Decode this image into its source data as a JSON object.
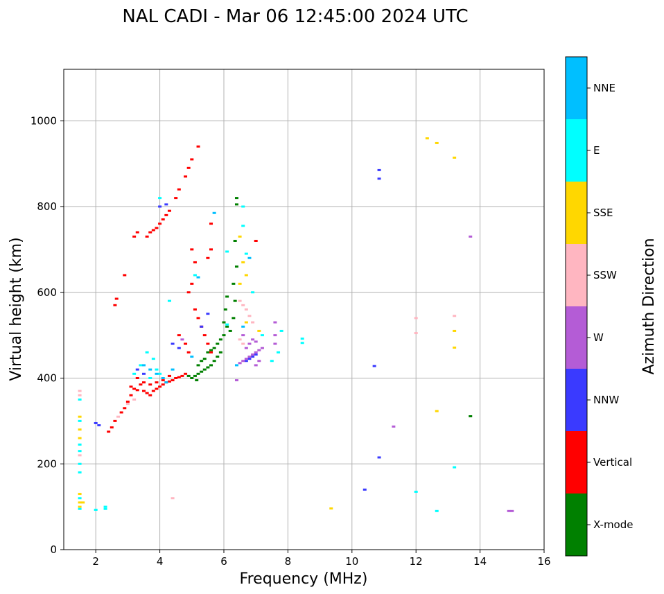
{
  "chart_data": {
    "type": "scatter",
    "title": "NAL CADI - Mar 06 12:45:00 2024 UTC",
    "xlabel": "Frequency (MHz)",
    "ylabel": "Virtual height (km)",
    "xlim": [
      1,
      16
    ],
    "ylim": [
      0,
      1120
    ],
    "xticks": [
      2,
      4,
      6,
      8,
      10,
      12,
      14,
      16
    ],
    "yticks": [
      0,
      200,
      400,
      600,
      800,
      1000
    ],
    "grid": true,
    "colorbar": {
      "label": "Azimuth Direction",
      "categories": [
        {
          "name": "X-mode",
          "color": "#008000"
        },
        {
          "name": "Vertical",
          "color": "#ff0000"
        },
        {
          "name": "NNW",
          "color": "#3a3aff"
        },
        {
          "name": "W",
          "color": "#b45cd6"
        },
        {
          "name": "SSW",
          "color": "#ffb6c1"
        },
        {
          "name": "SSE",
          "color": "#ffd700"
        },
        {
          "name": "E",
          "color": "#00ffff"
        },
        {
          "name": "NNE",
          "color": "#00bfff"
        }
      ]
    },
    "series": [
      {
        "name": "X-mode",
        "points": [
          [
            5.0,
            400
          ],
          [
            5.1,
            405
          ],
          [
            5.2,
            410
          ],
          [
            5.3,
            415
          ],
          [
            5.4,
            420
          ],
          [
            5.5,
            425
          ],
          [
            5.6,
            430
          ],
          [
            5.7,
            440
          ],
          [
            5.8,
            450
          ],
          [
            5.9,
            460
          ],
          [
            5.2,
            430
          ],
          [
            5.3,
            440
          ],
          [
            5.4,
            445
          ],
          [
            5.5,
            460
          ],
          [
            5.6,
            465
          ],
          [
            5.7,
            470
          ],
          [
            5.8,
            480
          ],
          [
            5.9,
            490
          ],
          [
            6.0,
            500
          ],
          [
            6.0,
            530
          ],
          [
            6.05,
            560
          ],
          [
            6.1,
            590
          ],
          [
            6.1,
            520
          ],
          [
            6.2,
            510
          ],
          [
            6.3,
            540
          ],
          [
            6.35,
            580
          ],
          [
            6.3,
            620
          ],
          [
            6.4,
            660
          ],
          [
            6.35,
            720
          ],
          [
            6.4,
            805
          ],
          [
            6.4,
            820
          ],
          [
            13.7,
            311
          ],
          [
            4.9,
            405
          ],
          [
            5.15,
            395
          ]
        ]
      },
      {
        "name": "Vertical",
        "points": [
          [
            2.4,
            275
          ],
          [
            2.5,
            285
          ],
          [
            2.6,
            300
          ],
          [
            2.6,
            570
          ],
          [
            2.65,
            585
          ],
          [
            2.8,
            320
          ],
          [
            2.9,
            330
          ],
          [
            2.9,
            640
          ],
          [
            3.0,
            345
          ],
          [
            3.1,
            360
          ],
          [
            3.1,
            380
          ],
          [
            3.2,
            375
          ],
          [
            3.3,
            372
          ],
          [
            3.4,
            385
          ],
          [
            3.5,
            370
          ],
          [
            3.6,
            365
          ],
          [
            3.7,
            360
          ],
          [
            3.8,
            370
          ],
          [
            3.9,
            375
          ],
          [
            4.0,
            380
          ],
          [
            4.1,
            385
          ],
          [
            4.2,
            390
          ],
          [
            4.3,
            392
          ],
          [
            4.4,
            395
          ],
          [
            4.5,
            400
          ],
          [
            4.6,
            402
          ],
          [
            4.7,
            405
          ],
          [
            4.8,
            410
          ],
          [
            3.3,
            400
          ],
          [
            3.5,
            390
          ],
          [
            3.7,
            385
          ],
          [
            3.9,
            390
          ],
          [
            4.1,
            395
          ],
          [
            4.3,
            405
          ],
          [
            3.2,
            730
          ],
          [
            3.3,
            740
          ],
          [
            3.6,
            730
          ],
          [
            3.7,
            740
          ],
          [
            3.8,
            745
          ],
          [
            3.9,
            750
          ],
          [
            4.0,
            760
          ],
          [
            4.1,
            770
          ],
          [
            4.2,
            780
          ],
          [
            4.3,
            790
          ],
          [
            4.5,
            820
          ],
          [
            4.6,
            840
          ],
          [
            4.8,
            870
          ],
          [
            4.9,
            890
          ],
          [
            5.0,
            910
          ],
          [
            5.2,
            940
          ],
          [
            4.9,
            600
          ],
          [
            5.0,
            620
          ],
          [
            5.1,
            560
          ],
          [
            5.2,
            540
          ],
          [
            5.3,
            520
          ],
          [
            5.4,
            500
          ],
          [
            5.5,
            480
          ],
          [
            5.6,
            460
          ],
          [
            5.0,
            700
          ],
          [
            5.1,
            670
          ],
          [
            5.6,
            760
          ],
          [
            5.6,
            700
          ],
          [
            5.5,
            680
          ],
          [
            4.6,
            500
          ],
          [
            4.8,
            480
          ],
          [
            4.9,
            460
          ],
          [
            7.0,
            720
          ]
        ]
      },
      {
        "name": "NNW",
        "points": [
          [
            2.0,
            295
          ],
          [
            2.1,
            290
          ],
          [
            3.3,
            420
          ],
          [
            3.5,
            410
          ],
          [
            4.0,
            800
          ],
          [
            4.2,
            805
          ],
          [
            4.4,
            480
          ],
          [
            4.6,
            470
          ],
          [
            5.5,
            550
          ],
          [
            5.3,
            520
          ],
          [
            10.7,
            428
          ],
          [
            10.85,
            865
          ],
          [
            10.85,
            885
          ],
          [
            10.85,
            215
          ],
          [
            10.4,
            140
          ],
          [
            6.7,
            440
          ],
          [
            6.8,
            445
          ],
          [
            6.9,
            450
          ],
          [
            7.0,
            455
          ]
        ]
      },
      {
        "name": "W",
        "points": [
          [
            4.7,
            490
          ],
          [
            6.4,
            395
          ],
          [
            6.5,
            435
          ],
          [
            6.6,
            440
          ],
          [
            6.7,
            445
          ],
          [
            6.8,
            450
          ],
          [
            6.9,
            455
          ],
          [
            7.0,
            460
          ],
          [
            7.1,
            465
          ],
          [
            7.2,
            470
          ],
          [
            6.7,
            470
          ],
          [
            6.8,
            480
          ],
          [
            6.9,
            490
          ],
          [
            7.0,
            485
          ],
          [
            6.6,
            500
          ],
          [
            7.6,
            480
          ],
          [
            7.6,
            500
          ],
          [
            7.6,
            530
          ],
          [
            7.0,
            430
          ],
          [
            7.1,
            440
          ],
          [
            13.7,
            730
          ],
          [
            11.3,
            287
          ],
          [
            14.9,
            90
          ],
          [
            15.0,
            90
          ]
        ]
      },
      {
        "name": "SSW",
        "points": [
          [
            1.5,
            360
          ],
          [
            1.5,
            370
          ],
          [
            1.5,
            220
          ],
          [
            2.7,
            310
          ],
          [
            3.0,
            340
          ],
          [
            3.2,
            350
          ],
          [
            6.5,
            580
          ],
          [
            6.6,
            570
          ],
          [
            6.7,
            560
          ],
          [
            6.8,
            545
          ],
          [
            6.9,
            530
          ],
          [
            6.5,
            490
          ],
          [
            6.6,
            480
          ],
          [
            12.0,
            540
          ],
          [
            12.0,
            505
          ],
          [
            13.2,
            545
          ],
          [
            4.4,
            120
          ]
        ]
      },
      {
        "name": "SSE",
        "points": [
          [
            1.5,
            100
          ],
          [
            1.5,
            110
          ],
          [
            1.5,
            130
          ],
          [
            1.6,
            110
          ],
          [
            1.5,
            260
          ],
          [
            1.5,
            280
          ],
          [
            1.5,
            310
          ],
          [
            6.5,
            620
          ],
          [
            6.5,
            730
          ],
          [
            6.6,
            670
          ],
          [
            6.7,
            640
          ],
          [
            6.7,
            530
          ],
          [
            7.1,
            510
          ],
          [
            12.35,
            959
          ],
          [
            12.65,
            948
          ],
          [
            13.2,
            914
          ],
          [
            13.2,
            510
          ],
          [
            13.2,
            471
          ],
          [
            12.65,
            323
          ],
          [
            9.35,
            96
          ]
        ]
      },
      {
        "name": "E",
        "points": [
          [
            1.5,
            95
          ],
          [
            1.5,
            120
          ],
          [
            1.5,
            180
          ],
          [
            1.5,
            200
          ],
          [
            1.5,
            230
          ],
          [
            1.5,
            245
          ],
          [
            1.5,
            300
          ],
          [
            1.5,
            350
          ],
          [
            2.3,
            95
          ],
          [
            2.3,
            100
          ],
          [
            2.0,
            93
          ],
          [
            3.2,
            410
          ],
          [
            3.4,
            430
          ],
          [
            3.6,
            460
          ],
          [
            3.8,
            445
          ],
          [
            3.9,
            420
          ],
          [
            4.0,
            410
          ],
          [
            3.7,
            400
          ],
          [
            4.0,
            820
          ],
          [
            4.3,
            580
          ],
          [
            5.1,
            640
          ],
          [
            6.1,
            695
          ],
          [
            6.1,
            525
          ],
          [
            6.6,
            755
          ],
          [
            6.6,
            800
          ],
          [
            6.7,
            690
          ],
          [
            6.9,
            600
          ],
          [
            7.2,
            500
          ],
          [
            7.5,
            440
          ],
          [
            7.7,
            460
          ],
          [
            7.8,
            510
          ],
          [
            8.45,
            482
          ],
          [
            8.45,
            492
          ],
          [
            13.2,
            192
          ],
          [
            12.65,
            90
          ],
          [
            12.0,
            135
          ]
        ]
      },
      {
        "name": "NNE",
        "points": [
          [
            3.5,
            430
          ],
          [
            3.7,
            420
          ],
          [
            3.9,
            410
          ],
          [
            4.1,
            400
          ],
          [
            4.2,
            390
          ],
          [
            4.4,
            420
          ],
          [
            5.0,
            450
          ],
          [
            5.2,
            635
          ],
          [
            6.4,
            430
          ],
          [
            6.6,
            520
          ],
          [
            6.8,
            680
          ],
          [
            5.7,
            785
          ]
        ]
      }
    ]
  }
}
